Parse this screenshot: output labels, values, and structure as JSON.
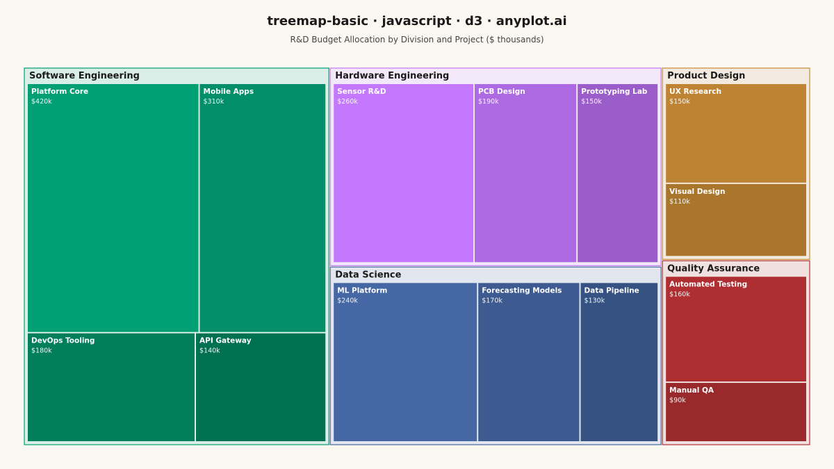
{
  "header": {
    "title": "treemap-basic · javascript · d3 · anyplot.ai",
    "subtitle": "R&D Budget Allocation by Division and Project ($ thousands)"
  },
  "chart_data": {
    "type": "treemap",
    "units": "$ thousands",
    "value_prefix": "$",
    "value_suffix": "k",
    "groups": [
      {
        "name": "Software Engineering",
        "color": "#009E73",
        "children": [
          {
            "name": "Platform Core",
            "value": 420,
            "color": "#00A074"
          },
          {
            "name": "Mobile Apps",
            "value": 310,
            "color": "#018E68"
          },
          {
            "name": "DevOps Tooling",
            "value": 180,
            "color": "#017F5C"
          },
          {
            "name": "API Gateway",
            "value": 140,
            "color": "#007052"
          }
        ]
      },
      {
        "name": "Hardware Engineering",
        "color": "#C678FA",
        "children": [
          {
            "name": "Sensor R&D",
            "value": 260,
            "color": "#C478FD"
          },
          {
            "name": "PCB Design",
            "value": 190,
            "color": "#AD6AE3"
          },
          {
            "name": "Prototyping Lab",
            "value": 150,
            "color": "#9B5DCA"
          }
        ]
      },
      {
        "name": "Product Design",
        "color": "#C98A2F",
        "children": [
          {
            "name": "UX Research",
            "value": 150,
            "color": "#BF8433"
          },
          {
            "name": "Visual Design",
            "value": 110,
            "color": "#A9762C"
          }
        ]
      },
      {
        "name": "Data Science",
        "color": "#4467A3",
        "children": [
          {
            "name": "ML Platform",
            "value": 240,
            "color": "#4567A4"
          },
          {
            "name": "Forecasting Models",
            "value": 170,
            "color": "#3D5B91"
          },
          {
            "name": "Data Pipeline",
            "value": 130,
            "color": "#355282"
          }
        ]
      },
      {
        "name": "Quality Assurance",
        "color": "#B03033",
        "children": [
          {
            "name": "Automated Testing",
            "value": 160,
            "color": "#AF2E32"
          },
          {
            "name": "Manual QA",
            "value": 90,
            "color": "#9A292B"
          }
        ]
      }
    ]
  }
}
